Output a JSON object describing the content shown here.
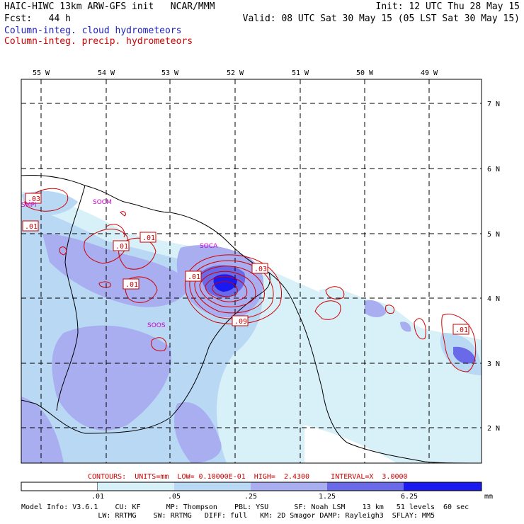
{
  "header": {
    "left_line1": "HAIC-HIWC 13km ARW-GFS init   NCAR/MMM",
    "left_line2": "Fcst:   44 h",
    "right_line1": "Init: 12 UTC Thu 28 May 15",
    "right_line2": "Valid: 08 UTC Sat 30 May 15 (05 LST Sat 30 May 15)",
    "field1": "Column-integ. cloud hydrometeors",
    "field2": "Column-integ. precip. hydrometeors"
  },
  "colors": {
    "cloud_field": "#2020c0",
    "precip_field": "#d00000",
    "station_labels": "#cc00cc"
  },
  "map": {
    "lon_labels": [
      "55 W",
      "54 W",
      "53 W",
      "52 W",
      "51 W",
      "50 W",
      "49 W"
    ],
    "lat_labels": [
      "7 N",
      "6 N",
      "5 N",
      "4 N",
      "3 N",
      "2 N"
    ],
    "stations": [
      "SMPI",
      "SOCM",
      "SOCA",
      "SOOS"
    ],
    "contour_labels": [
      ".03",
      ".01",
      ".01",
      ".01",
      ".01",
      ".01",
      ".03",
      ".09",
      ".01"
    ]
  },
  "contour_info": "CONTOURS:  UNITS=mm  LOW= 0.10000E-01  HIGH=  2.4300     INTERVAL=X  3.0000",
  "legend": {
    "ticks": [
      ".01",
      ".05",
      ".25",
      "1.25",
      "6.25",
      "mm"
    ],
    "colors": [
      "#ffffff",
      "#d8f0f8",
      "#b8d8f4",
      "#a8aef0",
      "#6a6ae8",
      "#3c3ce0",
      "#1a1af0"
    ]
  },
  "model_info": {
    "line1": "Model Info: V3.6.1    CU: KF      MP: Thompson    PBL: YSU      SF: Noah LSM    13 km   51 levels  60 sec",
    "line2": "                  LW: RRTMG    SW: RRTMG   DIFF: full   KM: 2D Smagor DAMP: Rayleigh3  SFLAY: MM5"
  }
}
